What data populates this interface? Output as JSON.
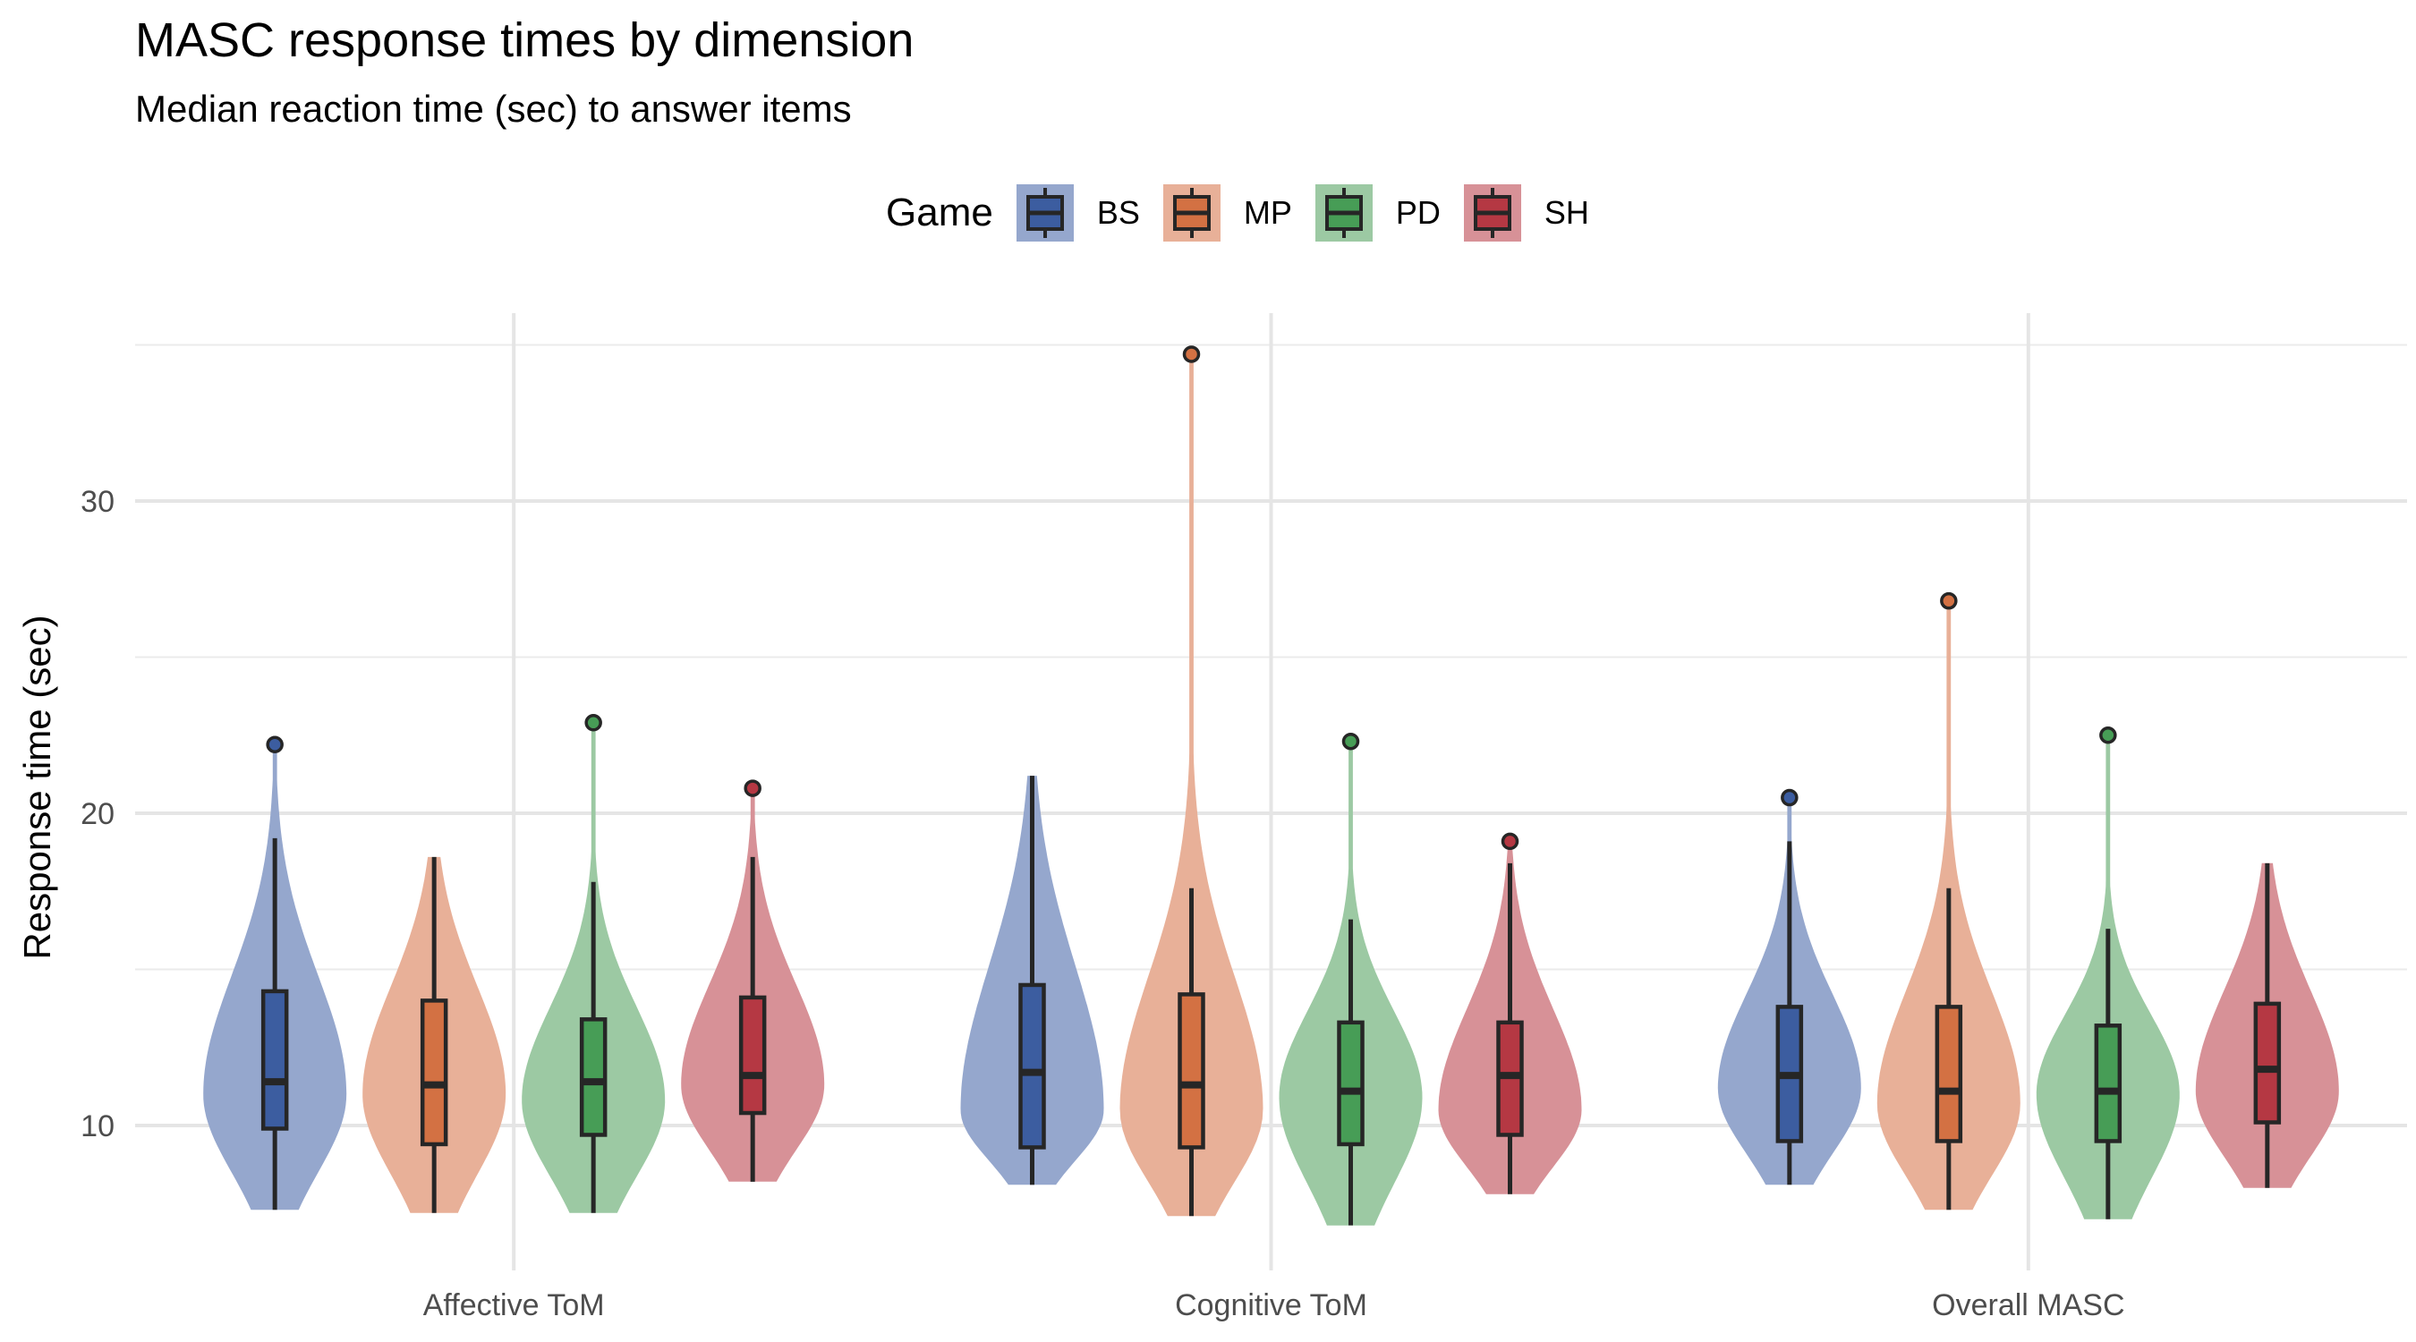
{
  "title": "MASC response times by dimension",
  "subtitle": "Median reaction time (sec) to answer items",
  "chart_data": {
    "type": "violin",
    "title": "MASC response times by dimension",
    "subtitle": "Median reaction time (sec) to answer items",
    "xlabel": "",
    "ylabel": "Response time (sec)",
    "ylim": [
      5.3,
      36.2
    ],
    "yticks": [
      10,
      20,
      30
    ],
    "ytick_labels": [
      "10",
      "20",
      "30"
    ],
    "grid": true,
    "legend": {
      "title": "Game",
      "position": "top",
      "entries": [
        "BS",
        "MP",
        "PD",
        "SH"
      ]
    },
    "colors": {
      "BS": "#3c5da0",
      "MP": "#d37143",
      "PD": "#479d56",
      "SH": "#b53843"
    },
    "light_colors": {
      "BS": "#95a7cd",
      "MP": "#e8b098",
      "PD": "#9cc9a3",
      "SH": "#d79197"
    },
    "categories": [
      "Affective ToM",
      "Cognitive ToM",
      "Overall MASC"
    ],
    "series": [
      {
        "name": "BS",
        "groups": [
          {
            "min": 7.3,
            "q1": 9.9,
            "median": 11.4,
            "q3": 14.3,
            "whisker_high": 19.2,
            "max": 22.2,
            "outliers": [
              22.2
            ],
            "mode": 11.0
          },
          {
            "min": 8.1,
            "q1": 9.3,
            "median": 11.7,
            "q3": 14.5,
            "whisker_high": 21.2,
            "max": 21.2,
            "outliers": [],
            "mode": 10.5
          },
          {
            "min": 8.1,
            "q1": 9.5,
            "median": 11.6,
            "q3": 13.8,
            "whisker_high": 19.1,
            "max": 20.5,
            "outliers": [
              20.5
            ],
            "mode": 11.2
          }
        ]
      },
      {
        "name": "MP",
        "groups": [
          {
            "min": 7.2,
            "q1": 9.4,
            "median": 11.3,
            "q3": 14.0,
            "whisker_high": 18.6,
            "max": 18.6,
            "outliers": [],
            "mode": 11.0
          },
          {
            "min": 7.1,
            "q1": 9.3,
            "median": 11.3,
            "q3": 14.2,
            "whisker_high": 17.6,
            "max": 34.7,
            "outliers": [
              34.7
            ],
            "mode": 10.5
          },
          {
            "min": 7.3,
            "q1": 9.5,
            "median": 11.1,
            "q3": 13.8,
            "whisker_high": 17.6,
            "max": 26.8,
            "outliers": [
              26.8
            ],
            "mode": 10.7
          }
        ]
      },
      {
        "name": "PD",
        "groups": [
          {
            "min": 7.2,
            "q1": 9.7,
            "median": 11.4,
            "q3": 13.4,
            "whisker_high": 17.8,
            "max": 22.9,
            "outliers": [
              22.9
            ],
            "mode": 10.8
          },
          {
            "min": 6.8,
            "q1": 9.4,
            "median": 11.1,
            "q3": 13.3,
            "whisker_high": 16.6,
            "max": 22.3,
            "outliers": [
              22.3
            ],
            "mode": 10.9
          },
          {
            "min": 7.0,
            "q1": 9.5,
            "median": 11.1,
            "q3": 13.2,
            "whisker_high": 16.3,
            "max": 22.5,
            "outliers": [
              22.5
            ],
            "mode": 11.0
          }
        ]
      },
      {
        "name": "SH",
        "groups": [
          {
            "min": 8.2,
            "q1": 10.4,
            "median": 11.6,
            "q3": 14.1,
            "whisker_high": 18.6,
            "max": 20.8,
            "outliers": [
              20.8
            ],
            "mode": 11.3
          },
          {
            "min": 7.8,
            "q1": 9.7,
            "median": 11.6,
            "q3": 13.3,
            "whisker_high": 18.4,
            "max": 19.1,
            "outliers": [
              19.1
            ],
            "mode": 10.5
          },
          {
            "min": 8.0,
            "q1": 10.1,
            "median": 11.8,
            "q3": 13.9,
            "whisker_high": 18.4,
            "max": 18.4,
            "outliers": [],
            "mode": 11.1
          }
        ]
      }
    ]
  }
}
